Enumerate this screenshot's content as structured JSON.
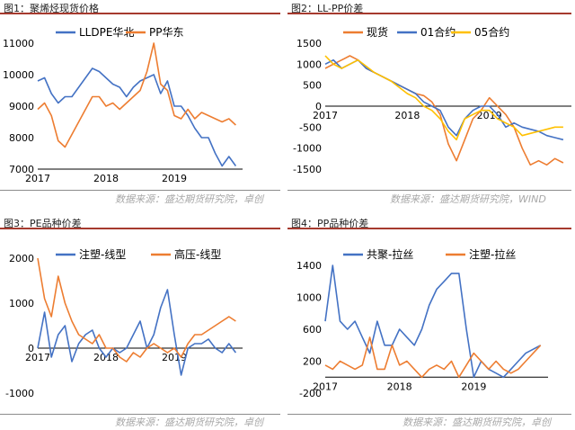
{
  "panels": [
    {
      "title": "图1：聚烯烃现货价格",
      "source": "数据来源：盛达期货研究院，卓创",
      "chart_data": {
        "type": "line",
        "title": "",
        "xlabel": "",
        "ylabel": "",
        "x_ticks": [
          "2017",
          "2018",
          "2019"
        ],
        "y_ticks": [
          7000,
          8000,
          9000,
          10000,
          11000
        ],
        "ylim": [
          7000,
          11000
        ],
        "legend": "top",
        "grid": false,
        "series": [
          {
            "name": "LLDPE华北",
            "color": "#4472c4",
            "x": [
              2017.0,
              2017.1,
              2017.2,
              2017.3,
              2017.4,
              2017.5,
              2017.6,
              2017.7,
              2017.8,
              2017.9,
              2018.0,
              2018.1,
              2018.2,
              2018.3,
              2018.4,
              2018.5,
              2018.6,
              2018.7,
              2018.8,
              2018.9,
              2019.0,
              2019.1,
              2019.2,
              2019.3,
              2019.4,
              2019.5,
              2019.6,
              2019.7,
              2019.8,
              2019.9
            ],
            "values": [
              9800,
              9900,
              9400,
              9100,
              9300,
              9300,
              9600,
              9900,
              10200,
              10100,
              9900,
              9700,
              9600,
              9300,
              9600,
              9800,
              9900,
              10000,
              9400,
              9800,
              9000,
              9000,
              8700,
              8300,
              8000,
              8000,
              7500,
              7100,
              7400,
              7100
            ]
          },
          {
            "name": "PP华东",
            "color": "#ed7d31",
            "x": [
              2017.0,
              2017.1,
              2017.2,
              2017.3,
              2017.4,
              2017.5,
              2017.6,
              2017.7,
              2017.8,
              2017.9,
              2018.0,
              2018.1,
              2018.2,
              2018.3,
              2018.4,
              2018.5,
              2018.6,
              2018.7,
              2018.8,
              2018.9,
              2019.0,
              2019.1,
              2019.2,
              2019.3,
              2019.4,
              2019.5,
              2019.6,
              2019.7,
              2019.8,
              2019.9
            ],
            "values": [
              8900,
              9100,
              8700,
              7900,
              7700,
              8100,
              8500,
              8900,
              9300,
              9300,
              9000,
              9100,
              8900,
              9100,
              9300,
              9500,
              10100,
              11000,
              9700,
              9500,
              8700,
              8600,
              8900,
              8600,
              8800,
              8700,
              8600,
              8500,
              8600,
              8400
            ]
          }
        ]
      }
    },
    {
      "title": "图2：LL-PP价差",
      "source": "数据来源：盛达期货研究院，WIND",
      "chart_data": {
        "type": "line",
        "title": "",
        "xlabel": "",
        "ylabel": "",
        "x_ticks": [
          "2017",
          "2018",
          "2019"
        ],
        "y_ticks": [
          -1500,
          -1000,
          -500,
          0,
          500,
          1000,
          1500
        ],
        "ylim": [
          -1500,
          1500
        ],
        "legend": "top",
        "grid": false,
        "series": [
          {
            "name": "现货",
            "color": "#ed7d31",
            "x": [
              2017.0,
              2017.1,
              2017.2,
              2017.3,
              2017.4,
              2017.5,
              2017.6,
              2017.7,
              2017.8,
              2017.9,
              2018.0,
              2018.1,
              2018.2,
              2018.3,
              2018.4,
              2018.5,
              2018.6,
              2018.7,
              2018.8,
              2018.9,
              2019.0,
              2019.1,
              2019.2,
              2019.3,
              2019.4,
              2019.5,
              2019.6,
              2019.7,
              2019.8,
              2019.9
            ],
            "values": [
              900,
              1000,
              1100,
              1200,
              1100,
              900,
              800,
              700,
              600,
              500,
              400,
              300,
              250,
              100,
              -200,
              -900,
              -1300,
              -800,
              -300,
              -100,
              200,
              0,
              -200,
              -500,
              -1000,
              -1400,
              -1300,
              -1400,
              -1250,
              -1350
            ]
          },
          {
            "name": "01合约",
            "color": "#4472c4",
            "x": [
              2017.0,
              2017.1,
              2017.2,
              2017.3,
              2017.4,
              2017.5,
              2017.6,
              2017.7,
              2017.8,
              2017.9,
              2018.0,
              2018.1,
              2018.2,
              2018.3,
              2018.4,
              2018.5,
              2018.6,
              2018.7,
              2018.8,
              2018.9,
              2019.0,
              2019.1,
              2019.2,
              2019.3,
              2019.4,
              2019.5,
              2019.6,
              2019.7,
              2019.8,
              2019.9
            ],
            "values": [
              1000,
              1100,
              900,
              1000,
              1100,
              900,
              800,
              700,
              600,
              500,
              400,
              300,
              100,
              0,
              -100,
              -500,
              -700,
              -300,
              -100,
              0,
              0,
              -200,
              -500,
              -400,
              -500,
              -550,
              -600,
              -700,
              -750,
              -800
            ]
          },
          {
            "name": "05合约",
            "color": "#ffc000",
            "x": [
              2017.0,
              2017.1,
              2017.2,
              2017.3,
              2017.4,
              2017.5,
              2017.6,
              2017.7,
              2017.8,
              2017.9,
              2018.0,
              2018.1,
              2018.2,
              2018.3,
              2018.4,
              2018.5,
              2018.6,
              2018.7,
              2018.8,
              2018.9,
              2019.0,
              2019.1,
              2019.2,
              2019.3,
              2019.4,
              2019.5,
              2019.6,
              2019.7,
              2019.8,
              2019.9
            ],
            "values": [
              1200,
              1000,
              900,
              1000,
              1100,
              950,
              800,
              700,
              600,
              450,
              300,
              200,
              0,
              -100,
              -300,
              -600,
              -800,
              -300,
              -200,
              -100,
              -100,
              -300,
              -400,
              -500,
              -700,
              -650,
              -600,
              -550,
              -500,
              -500
            ]
          }
        ]
      }
    },
    {
      "title": "图3：PE品种价差",
      "source": "数据来源：盛达期货研究院，卓创",
      "chart_data": {
        "type": "line",
        "title": "",
        "xlabel": "",
        "ylabel": "",
        "x_ticks": [
          "2017",
          "2018",
          "2019"
        ],
        "y_ticks": [
          -1000,
          0,
          1000,
          2000
        ],
        "ylim": [
          -1000,
          2000
        ],
        "legend": "top",
        "grid": false,
        "series": [
          {
            "name": "注塑-线型",
            "color": "#4472c4",
            "x": [
              2017.0,
              2017.1,
              2017.2,
              2017.3,
              2017.4,
              2017.5,
              2017.6,
              2017.7,
              2017.8,
              2017.9,
              2018.0,
              2018.1,
              2018.2,
              2018.3,
              2018.4,
              2018.5,
              2018.6,
              2018.7,
              2018.8,
              2018.9,
              2019.0,
              2019.1,
              2019.2,
              2019.3,
              2019.4,
              2019.5,
              2019.6,
              2019.7,
              2019.8,
              2019.9
            ],
            "values": [
              0,
              800,
              -200,
              300,
              500,
              -300,
              100,
              300,
              400,
              0,
              -200,
              0,
              -100,
              0,
              300,
              600,
              0,
              300,
              900,
              1300,
              300,
              -600,
              0,
              100,
              100,
              200,
              0,
              -100,
              100,
              -100
            ]
          },
          {
            "name": "高压-线型",
            "color": "#ed7d31",
            "x": [
              2017.0,
              2017.1,
              2017.2,
              2017.3,
              2017.4,
              2017.5,
              2017.6,
              2017.7,
              2017.8,
              2017.9,
              2018.0,
              2018.1,
              2018.2,
              2018.3,
              2018.4,
              2018.5,
              2018.6,
              2018.7,
              2018.8,
              2018.9,
              2019.0,
              2019.1,
              2019.2,
              2019.3,
              2019.4,
              2019.5,
              2019.6,
              2019.7,
              2019.8,
              2019.9
            ],
            "values": [
              2000,
              1100,
              700,
              1600,
              1000,
              600,
              300,
              200,
              100,
              300,
              0,
              0,
              -200,
              -300,
              -100,
              -200,
              0,
              100,
              0,
              -100,
              0,
              -200,
              100,
              300,
              300,
              400,
              500,
              600,
              700,
              600
            ]
          }
        ]
      }
    },
    {
      "title": "图4：PP品种价差",
      "source": "数据来源：盛达期货研究院，卓创",
      "chart_data": {
        "type": "line",
        "title": "",
        "xlabel": "",
        "ylabel": "",
        "x_ticks": [
          "2017",
          "2018",
          "2019"
        ],
        "y_ticks": [
          -200,
          200,
          600,
          1000,
          1400
        ],
        "ylim": [
          -200,
          1400
        ],
        "legend": "top",
        "grid": false,
        "series": [
          {
            "name": "共聚-拉丝",
            "color": "#4472c4",
            "x": [
              2017.0,
              2017.1,
              2017.2,
              2017.3,
              2017.4,
              2017.5,
              2017.6,
              2017.7,
              2017.8,
              2017.9,
              2018.0,
              2018.1,
              2018.2,
              2018.3,
              2018.4,
              2018.5,
              2018.6,
              2018.7,
              2018.8,
              2018.9,
              2019.0,
              2019.1,
              2019.2,
              2019.3,
              2019.4,
              2019.5,
              2019.6,
              2019.7,
              2019.8,
              2019.9
            ],
            "values": [
              700,
              1400,
              700,
              600,
              700,
              500,
              300,
              700,
              400,
              400,
              600,
              500,
              400,
              600,
              900,
              1100,
              1200,
              1300,
              1300,
              600,
              0,
              200,
              100,
              50,
              0,
              100,
              200,
              300,
              350,
              400
            ]
          },
          {
            "name": "注塑-拉丝",
            "color": "#ed7d31",
            "x": [
              2017.0,
              2017.1,
              2017.2,
              2017.3,
              2017.4,
              2017.5,
              2017.6,
              2017.7,
              2017.8,
              2017.9,
              2018.0,
              2018.1,
              2018.2,
              2018.3,
              2018.4,
              2018.5,
              2018.6,
              2018.7,
              2018.8,
              2018.9,
              2019.0,
              2019.1,
              2019.2,
              2019.3,
              2019.4,
              2019.5,
              2019.6,
              2019.7,
              2019.8,
              2019.9
            ],
            "values": [
              150,
              100,
              200,
              150,
              100,
              150,
              500,
              100,
              100,
              400,
              150,
              200,
              100,
              0,
              100,
              150,
              100,
              200,
              0,
              150,
              300,
              200,
              100,
              200,
              100,
              50,
              100,
              200,
              300,
              400
            ]
          }
        ]
      }
    }
  ]
}
